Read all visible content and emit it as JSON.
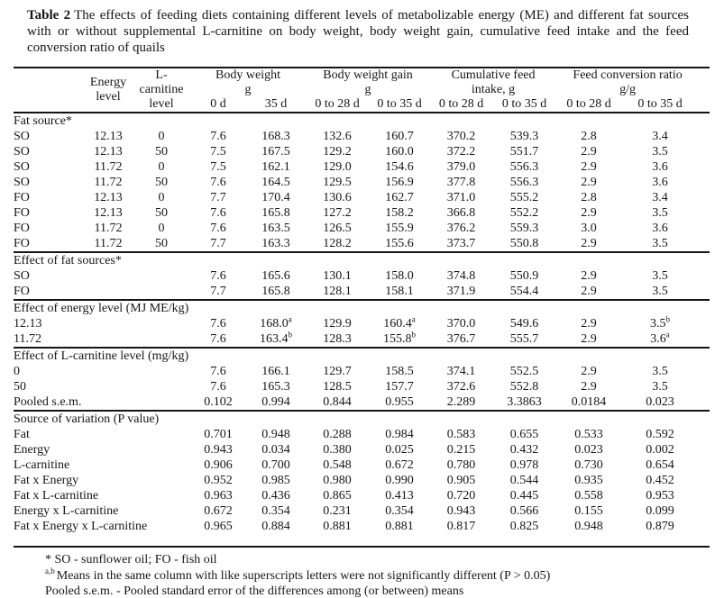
{
  "caption": {
    "label": "Table 2",
    "text": "The effects of feeding diets containing different levels of metabolizable energy (ME) and different fat sources with or without supplemental L-carnitine on body weight, body weight gain, cumulative feed intake and the feed conversion ratio of quails"
  },
  "table": {
    "header": {
      "energy_lines": [
        "Energy",
        "level"
      ],
      "carnitine_lines": [
        "L-",
        "carnitine",
        "level"
      ],
      "groups": [
        {
          "line1": "Body weight",
          "line2": "g"
        },
        {
          "line1": "Body weight gain",
          "line2": "g"
        },
        {
          "line1": "Cumulative feed",
          "line2": "intake, g"
        },
        {
          "line1": "Feed conversion ratio",
          "line2": "g/g"
        }
      ],
      "subcols": [
        "0 d",
        "35 d",
        "0 to 28 d",
        "0 to 35 d",
        "0 to 28 d",
        "0 to 35 d",
        "0 to 28 d",
        "0 to 35 d"
      ]
    },
    "sections": [
      {
        "title": "Fat source*",
        "rows": [
          {
            "label": "SO",
            "energy": "12.13",
            "carnitine": "0",
            "values": [
              "7.6",
              "168.3",
              "132.6",
              "160.7",
              "370.2",
              "539.3",
              "2.8",
              "3.4"
            ]
          },
          {
            "label": "SO",
            "energy": "12.13",
            "carnitine": "50",
            "values": [
              "7.5",
              "167.5",
              "129.2",
              "160.0",
              "372.2",
              "551.7",
              "2.9",
              "3.5"
            ]
          },
          {
            "label": "SO",
            "energy": "11.72",
            "carnitine": "0",
            "values": [
              "7.5",
              "162.1",
              "129.0",
              "154.6",
              "379.0",
              "556.3",
              "2.9",
              "3.6"
            ]
          },
          {
            "label": "SO",
            "energy": "11.72",
            "carnitine": "50",
            "values": [
              "7.6",
              "164.5",
              "129.5",
              "156.9",
              "377.8",
              "556.3",
              "2.9",
              "3.6"
            ]
          },
          {
            "label": "FO",
            "energy": "12.13",
            "carnitine": "0",
            "values": [
              "7.7",
              "170.4",
              "130.6",
              "162.7",
              "371.0",
              "555.2",
              "2.8",
              "3.4"
            ]
          },
          {
            "label": "FO",
            "energy": "12.13",
            "carnitine": "50",
            "values": [
              "7.6",
              "165.8",
              "127.2",
              "158.2",
              "366.8",
              "552.2",
              "2.9",
              "3.5"
            ]
          },
          {
            "label": "FO",
            "energy": "11.72",
            "carnitine": "0",
            "values": [
              "7.6",
              "163.5",
              "126.5",
              "155.9",
              "376.2",
              "559.3",
              "3.0",
              "3.6"
            ]
          },
          {
            "label": "FO",
            "energy": "11.72",
            "carnitine": "50",
            "values": [
              "7.7",
              "163.3",
              "128.2",
              "155.6",
              "373.7",
              "550.8",
              "2.9",
              "3.5"
            ]
          }
        ]
      },
      {
        "title": "Effect of fat sources*",
        "rows": [
          {
            "label": "SO",
            "values": [
              "7.6",
              "165.6",
              "130.1",
              "158.0",
              "374.8",
              "550.9",
              "2.9",
              "3.5"
            ]
          },
          {
            "label": "FO",
            "values": [
              "7.7",
              "165.8",
              "128.1",
              "158.1",
              "371.9",
              "554.4",
              "2.9",
              "3.5"
            ]
          }
        ]
      },
      {
        "title": "Effect of energy level (MJ ME/kg)",
        "rows": [
          {
            "label": "12.13",
            "values": [
              "7.6",
              "168.0^a",
              "129.9",
              "160.4^a",
              "370.0",
              "549.6",
              "2.9",
              "3.5^b"
            ]
          },
          {
            "label": "11.72",
            "values": [
              "7.6",
              "163.4^b",
              "128.3",
              "155.8^b",
              "376.7",
              "555.7",
              "2.9",
              "3.6^a"
            ]
          }
        ]
      },
      {
        "title": "Effect of L-carnitine level (mg/kg)",
        "rows": [
          {
            "label": "0",
            "values": [
              "7.6",
              "166.1",
              "129.7",
              "158.5",
              "374.1",
              "552.5",
              "2.9",
              "3.5"
            ]
          },
          {
            "label": "50",
            "values": [
              "7.6",
              "165.3",
              "128.5",
              "157.7",
              "372.6",
              "552.8",
              "2.9",
              "3.5"
            ]
          },
          {
            "label": "Pooled s.e.m.",
            "values": [
              "0.102",
              "0.994",
              "0.844",
              "0.955",
              "2.289",
              "3.3863",
              "0.0184",
              "0.023"
            ]
          }
        ]
      },
      {
        "title": "Source of variation (P value)",
        "rows": [
          {
            "label": "Fat",
            "values": [
              "0.701",
              "0.948",
              "0.288",
              "0.984",
              "0.583",
              "0.655",
              "0.533",
              "0.592"
            ]
          },
          {
            "label": "Energy",
            "values": [
              "0.943",
              "0.034",
              "0.380",
              "0.025",
              "0.215",
              "0.432",
              "0.023",
              "0.002"
            ]
          },
          {
            "label": "L-carnitine",
            "values": [
              "0.906",
              "0.700",
              "0.548",
              "0.672",
              "0.780",
              "0.978",
              "0.730",
              "0.654"
            ]
          },
          {
            "label": "Fat x Energy",
            "values": [
              "0.952",
              "0.985",
              "0.980",
              "0.990",
              "0.905",
              "0.544",
              "0.935",
              "0.452"
            ]
          },
          {
            "label": "Fat x L-carnitine",
            "values": [
              "0.963",
              "0.436",
              "0.865",
              "0.413",
              "0.720",
              "0.445",
              "0.558",
              "0.953"
            ]
          },
          {
            "label": "Energy x L-carnitine",
            "values": [
              "0.672",
              "0.354",
              "0.231",
              "0.354",
              "0.943",
              "0.566",
              "0.155",
              "0.099"
            ]
          },
          {
            "label": "Fat x Energy x L-carnitine",
            "values": [
              "0.965",
              "0.884",
              "0.881",
              "0.881",
              "0.817",
              "0.825",
              "0.948",
              "0.879"
            ]
          }
        ]
      }
    ]
  },
  "footnotes": [
    {
      "sup": "",
      "text": "* SO - sunflower oil; FO - fish oil"
    },
    {
      "sup": "a,b",
      "text": "Means in the same column with like superscripts letters were not significantly different (P > 0.05)"
    },
    {
      "sup": "",
      "text": "Pooled s.e.m. - Pooled standard error of the differences among (or between) means"
    }
  ]
}
